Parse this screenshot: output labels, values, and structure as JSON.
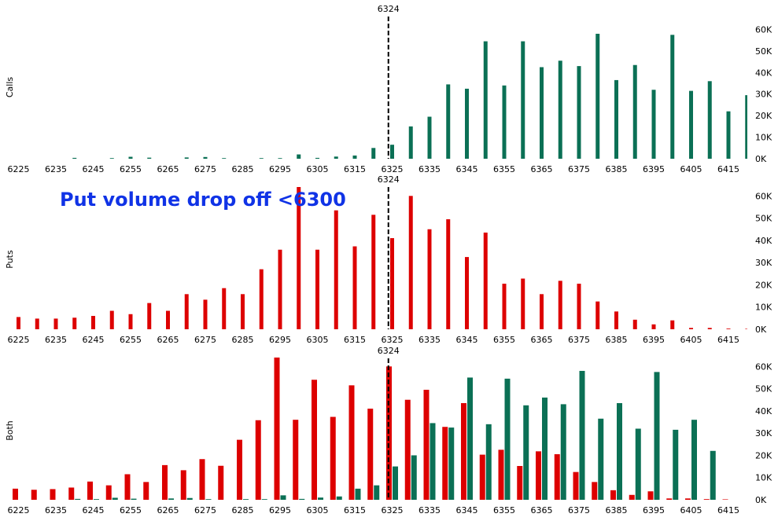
{
  "annotation": "Put volume drop off <6300",
  "colors": {
    "calls": "#0b7055",
    "puts": "#dd0000",
    "marker": "#000000"
  },
  "chart_data": [
    {
      "type": "bar",
      "panel": "calls",
      "ylabel": "Calls",
      "marker": {
        "x": 6324,
        "label": "6324",
        "style": "dashed"
      },
      "x_ticks": [
        6225,
        6235,
        6245,
        6255,
        6265,
        6275,
        6285,
        6295,
        6305,
        6315,
        6325,
        6335,
        6345,
        6355,
        6365,
        6375,
        6385,
        6395,
        6405,
        6415
      ],
      "y_ticks": [
        "0K",
        "10K",
        "20K",
        "30K",
        "40K",
        "50K",
        "60K"
      ],
      "ylim": [
        0,
        62000
      ],
      "x": [
        6225,
        6230,
        6235,
        6240,
        6245,
        6250,
        6255,
        6260,
        6265,
        6270,
        6275,
        6280,
        6285,
        6290,
        6295,
        6300,
        6305,
        6310,
        6315,
        6320,
        6325,
        6330,
        6335,
        6340,
        6345,
        6350,
        6355,
        6360,
        6365,
        6370,
        6375,
        6380,
        6385,
        6390,
        6395,
        6400,
        6405,
        6410,
        6415,
        6420
      ],
      "series": [
        {
          "name": "Calls",
          "values": [
            0,
            0,
            0,
            400,
            0,
            300,
            900,
            500,
            0,
            600,
            800,
            300,
            0,
            300,
            300,
            2000,
            400,
            1000,
            1500,
            5000,
            6500,
            15000,
            19500,
            34500,
            32500,
            54500,
            34000,
            54500,
            42500,
            45500,
            43000,
            58000,
            36500,
            43500,
            32000,
            57500,
            31500,
            36000,
            22000,
            29500
          ]
        }
      ]
    },
    {
      "type": "bar",
      "panel": "puts",
      "ylabel": "Puts",
      "marker": {
        "x": 6324,
        "label": "6324",
        "style": "dashed"
      },
      "x_ticks": [
        6225,
        6235,
        6245,
        6255,
        6265,
        6275,
        6285,
        6295,
        6305,
        6315,
        6325,
        6335,
        6345,
        6355,
        6365,
        6375,
        6385,
        6395,
        6405,
        6415
      ],
      "y_ticks": [
        "0K",
        "10K",
        "20K",
        "30K",
        "40K",
        "50K",
        "60K"
      ],
      "ylim": [
        0,
        64000
      ],
      "x": [
        6225,
        6230,
        6235,
        6240,
        6245,
        6250,
        6255,
        6260,
        6265,
        6270,
        6275,
        6280,
        6285,
        6290,
        6295,
        6300,
        6305,
        6310,
        6315,
        6320,
        6325,
        6330,
        6335,
        6340,
        6345,
        6350,
        6355,
        6360,
        6365,
        6370,
        6375,
        6380,
        6385,
        6390,
        6395,
        6400,
        6405,
        6410,
        6415,
        6420
      ],
      "series": [
        {
          "name": "Puts",
          "values": [
            5500,
            4800,
            4800,
            5200,
            6000,
            8300,
            6800,
            11800,
            8300,
            15800,
            13300,
            18500,
            15800,
            27000,
            35800,
            64000,
            35800,
            53500,
            37300,
            51500,
            41000,
            60000,
            45000,
            49500,
            32500,
            43500,
            20500,
            22800,
            15800,
            21800,
            20500,
            12500,
            8000,
            4300,
            2200,
            4000,
            600,
            600,
            300,
            200
          ]
        }
      ]
    },
    {
      "type": "bar",
      "panel": "both",
      "ylabel": "Both",
      "marker": {
        "x": 6324,
        "label": "6324",
        "style": "dashed"
      },
      "x_ticks": [
        6225,
        6235,
        6245,
        6255,
        6265,
        6275,
        6285,
        6295,
        6305,
        6315,
        6325,
        6335,
        6345,
        6355,
        6365,
        6375,
        6385,
        6395,
        6405,
        6415
      ],
      "y_ticks": [
        "0K",
        "10K",
        "20K",
        "30K",
        "40K",
        "50K",
        "60K"
      ],
      "ylim": [
        0,
        64000
      ],
      "x": [
        6225,
        6230,
        6235,
        6240,
        6245,
        6250,
        6255,
        6260,
        6265,
        6270,
        6275,
        6280,
        6285,
        6290,
        6295,
        6300,
        6305,
        6310,
        6315,
        6320,
        6325,
        6330,
        6335,
        6340,
        6345,
        6350,
        6355,
        6360,
        6365,
        6370,
        6375,
        6380,
        6385,
        6390,
        6395,
        6400,
        6405,
        6410,
        6415,
        6420
      ],
      "series": [
        {
          "name": "Puts",
          "values": [
            5000,
            4500,
            4800,
            5500,
            8200,
            6500,
            11500,
            8000,
            15600,
            13300,
            18300,
            15300,
            27000,
            35800,
            64000,
            36000,
            54000,
            37300,
            51500,
            41000,
            60000,
            45000,
            49500,
            32800,
            43500,
            20300,
            22500,
            15200,
            21800,
            20500,
            12500,
            8000,
            4300,
            2200,
            3800,
            600,
            600,
            300,
            200,
            0
          ]
        },
        {
          "name": "Calls",
          "values": [
            0,
            0,
            0,
            400,
            300,
            900,
            500,
            0,
            600,
            800,
            300,
            0,
            300,
            300,
            2000,
            400,
            1000,
            1500,
            5000,
            6500,
            15000,
            20000,
            34500,
            32500,
            55000,
            34000,
            54500,
            42500,
            46000,
            43000,
            58000,
            36500,
            43500,
            32000,
            57500,
            31500,
            36000,
            22000,
            0,
            0
          ]
        }
      ]
    }
  ]
}
